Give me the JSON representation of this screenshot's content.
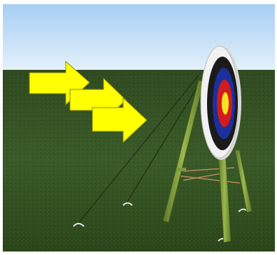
{
  "scene": {
    "subject": "archery-target-on-tripod-stand",
    "wind_arrows": 3,
    "colors": {
      "sky_top": "#a6cef3",
      "sky_bottom": "#e8f4fd",
      "grass_light": "#3f5e2c",
      "grass_dark": "#233a18",
      "arrow_fill": "#ffff00",
      "arrow_stroke": "#8a8a00",
      "stand_wood": "#7d9a3c",
      "target_white": "#f2f2f2",
      "target_black": "#1a1a1a",
      "target_blue": "#1c2f9c",
      "target_red": "#d21b1b",
      "target_gold": "#f3e41c",
      "rope": "#b98a5a"
    }
  }
}
